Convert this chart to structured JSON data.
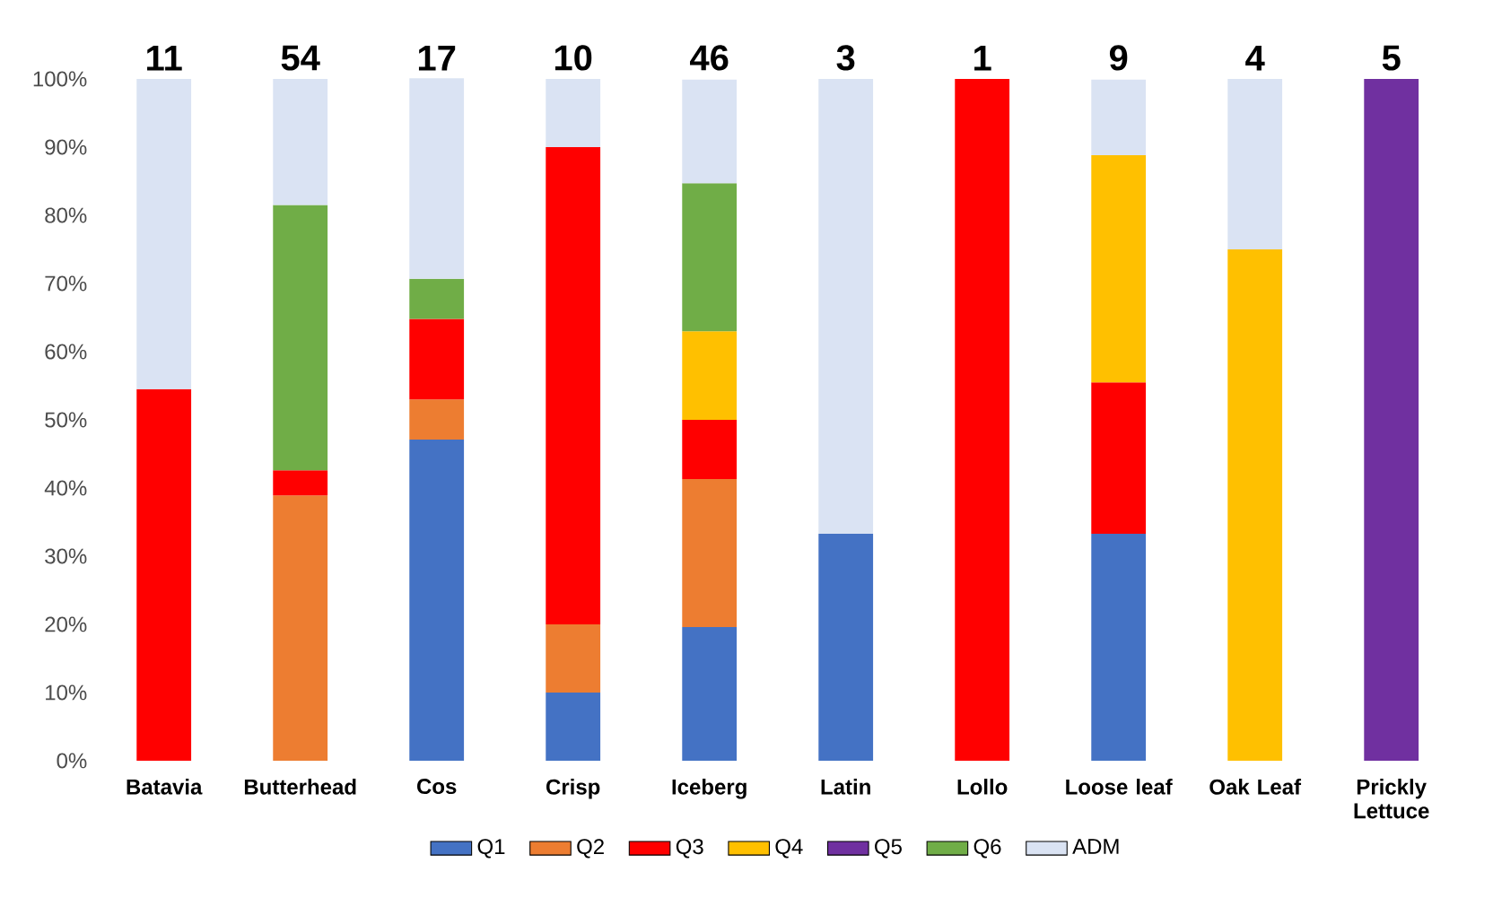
{
  "chart_data": {
    "type": "bar",
    "stacked": true,
    "categories": [
      "Batavia",
      "Butterhead",
      "Cos",
      "Crisp",
      "Iceberg",
      "Latin",
      "Lollo",
      "Loose leaf",
      "Oak Leaf",
      "Prickly Lettuce"
    ],
    "series": [
      {
        "name": "Q1",
        "color": "#4472c4",
        "values": [
          null,
          null,
          47.1,
          10,
          19.6,
          33.3,
          null,
          33.3,
          null,
          null
        ]
      },
      {
        "name": "Q2",
        "color": "#ed7d31",
        "values": [
          null,
          38.9,
          5.9,
          10,
          21.7,
          null,
          null,
          null,
          null,
          null
        ]
      },
      {
        "name": "Q3",
        "color": "#ff0000",
        "values": [
          54.5,
          3.7,
          11.8,
          70,
          8.7,
          null,
          100,
          22.2,
          null,
          null
        ]
      },
      {
        "name": "Q4",
        "color": "#ffc000",
        "values": [
          null,
          null,
          null,
          null,
          13.0,
          null,
          null,
          33.3,
          75,
          null
        ]
      },
      {
        "name": "Q5",
        "color": "#7030a0",
        "values": [
          null,
          null,
          null,
          null,
          null,
          null,
          null,
          null,
          null,
          100
        ]
      },
      {
        "name": "Q6",
        "color": "#70ad47",
        "values": [
          null,
          38.9,
          5.9,
          null,
          21.7,
          null,
          null,
          null,
          null,
          null
        ]
      },
      {
        "name": "ADM",
        "color": "#dae3f3",
        "values": [
          45.5,
          18.5,
          29.4,
          10,
          15.2,
          66.7,
          null,
          11.1,
          25,
          null
        ]
      }
    ],
    "annotations": [
      {
        "text": "11",
        "x": "Batavia",
        "y": 100
      },
      {
        "text": "54",
        "x": "Butterhead",
        "y": 100
      },
      {
        "text": "17",
        "x": "Cos",
        "y": 100
      },
      {
        "text": "10",
        "x": "Crisp",
        "y": 100
      },
      {
        "text": "46",
        "x": "Iceberg",
        "y": 100
      },
      {
        "text": "3",
        "x": "Latin",
        "y": 100
      },
      {
        "text": "1",
        "x": "Lollo",
        "y": 100
      },
      {
        "text": "9",
        "x": "Loose leaf",
        "y": 100
      },
      {
        "text": "4",
        "x": "Oak Leaf",
        "y": 100
      },
      {
        "text": "5",
        "x": "Prickly Lettuce",
        "y": 100
      }
    ],
    "ylim": [
      0,
      100
    ],
    "yticks": [
      {
        "value": 0,
        "label": "0%"
      },
      {
        "value": 10,
        "label": "10%"
      },
      {
        "value": 20,
        "label": "20%"
      },
      {
        "value": 30,
        "label": "30%"
      },
      {
        "value": 40,
        "label": "40%"
      },
      {
        "value": 50,
        "label": "50%"
      },
      {
        "value": 60,
        "label": "60%"
      },
      {
        "value": 70,
        "label": "70%"
      },
      {
        "value": 80,
        "label": "80%"
      },
      {
        "value": 90,
        "label": "90%"
      },
      {
        "value": 100,
        "label": "100%"
      }
    ],
    "legend": "bottom"
  }
}
